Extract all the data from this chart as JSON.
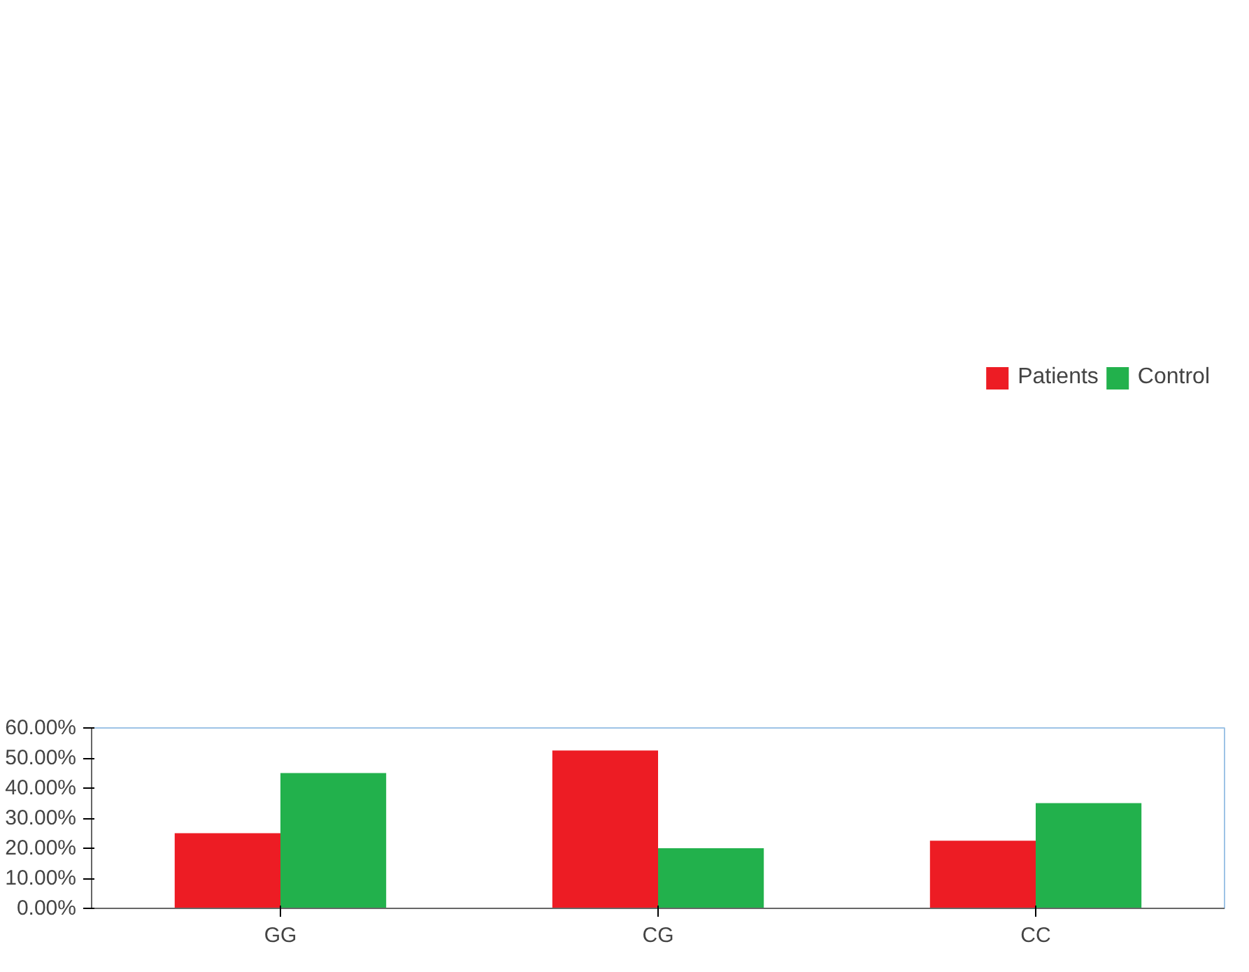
{
  "chart_data": {
    "type": "bar",
    "categories": [
      "GG",
      "CG",
      "CC"
    ],
    "series": [
      {
        "name": "Patients",
        "color": "#ed1c24",
        "values": [
          25,
          52.5,
          22.5
        ]
      },
      {
        "name": "Control",
        "color": "#22b14c",
        "values": [
          45,
          20,
          35
        ]
      }
    ],
    "ylim": [
      0,
      60
    ],
    "yticks": [
      {
        "value": 0,
        "label": "0.00%"
      },
      {
        "value": 10,
        "label": "10.00%"
      },
      {
        "value": 20,
        "label": "20.00%"
      },
      {
        "value": 30,
        "label": "30.00%"
      },
      {
        "value": 40,
        "label": "40.00%"
      },
      {
        "value": 50,
        "label": "50.00%"
      },
      {
        "value": 60,
        "label": "60.00%"
      }
    ],
    "grid": false,
    "legend": "top"
  }
}
